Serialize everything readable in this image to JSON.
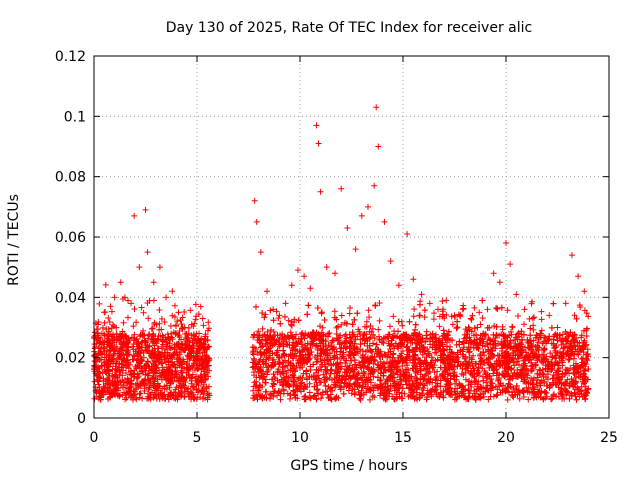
{
  "chart_data": {
    "type": "scatter",
    "title": "Day 130 of 2025, Rate Of TEC Index for receiver alic",
    "xlabel": "GPS time / hours",
    "ylabel": "ROTI / TECUs",
    "xlim": [
      0,
      25
    ],
    "ylim": [
      0,
      0.12
    ],
    "xticks": [
      0,
      5,
      10,
      15,
      20,
      25
    ],
    "xtick_labels": [
      "0",
      "5",
      "10",
      "15",
      "20",
      "25"
    ],
    "yticks": [
      0,
      0.02,
      0.04,
      0.06,
      0.08,
      0.1,
      0.12
    ],
    "ytick_labels": [
      "0",
      "0.02",
      "0.04",
      "0.06",
      "0.08",
      "0.1",
      "0.12"
    ],
    "grid": true,
    "marker": "+",
    "series_color": "#ff0000",
    "data_coverage_hours": [
      [
        0,
        5.6
      ],
      [
        7.7,
        24.0
      ]
    ],
    "series": [
      {
        "name": "ROTI",
        "x": [
          0.2,
          0.5,
          0.8,
          1.0,
          1.3,
          1.5,
          1.8,
          1.95,
          2.2,
          2.5,
          2.6,
          2.9,
          3.2,
          3.5,
          3.8,
          4.1,
          4.4,
          4.8,
          5.1,
          5.4,
          7.8,
          7.9,
          8.1,
          8.4,
          8.7,
          9.0,
          9.3,
          9.6,
          9.9,
          10.2,
          10.5,
          10.8,
          10.9,
          11.0,
          11.3,
          11.7,
          12.0,
          12.3,
          12.7,
          13.0,
          13.3,
          13.6,
          13.7,
          13.8,
          14.1,
          14.4,
          14.8,
          15.2,
          15.5,
          15.9,
          16.3,
          16.7,
          17.1,
          17.5,
          17.9,
          18.3,
          18.7,
          19.1,
          19.4,
          19.7,
          20.0,
          20.2,
          20.5,
          20.9,
          21.3,
          21.7,
          22.1,
          22.5,
          22.9,
          23.2,
          23.5,
          23.8
        ],
        "y": [
          0.031,
          0.035,
          0.037,
          0.04,
          0.045,
          0.04,
          0.038,
          0.067,
          0.05,
          0.069,
          0.055,
          0.045,
          0.05,
          0.04,
          0.042,
          0.035,
          0.03,
          0.025,
          0.028,
          0.027,
          0.072,
          0.065,
          0.055,
          0.042,
          0.036,
          0.034,
          0.038,
          0.044,
          0.049,
          0.047,
          0.043,
          0.097,
          0.091,
          0.075,
          0.05,
          0.048,
          0.076,
          0.063,
          0.056,
          0.067,
          0.07,
          0.077,
          0.103,
          0.09,
          0.065,
          0.052,
          0.044,
          0.061,
          0.046,
          0.041,
          0.038,
          0.036,
          0.039,
          0.034,
          0.036,
          0.033,
          0.035,
          0.036,
          0.048,
          0.045,
          0.058,
          0.051,
          0.041,
          0.036,
          0.033,
          0.028,
          0.034,
          0.03,
          0.038,
          0.054,
          0.047,
          0.042
        ]
      }
    ]
  }
}
